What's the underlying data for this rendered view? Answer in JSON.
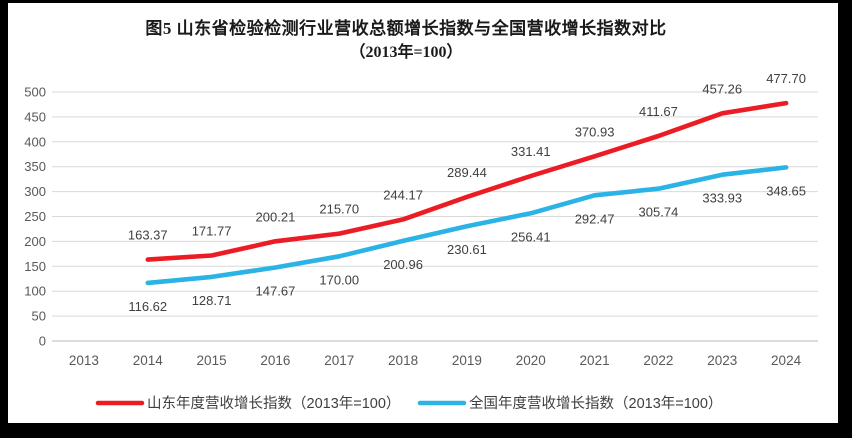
{
  "title": {
    "line1": "图5  山东省检验检测行业营收总额增长指数与全国营收增长指数对比",
    "line2": "（2013年=100）"
  },
  "chart_data": {
    "type": "line",
    "title": "图5  山东省检验检测行业营收总额增长指数与全国营收增长指数对比",
    "subtitle": "（2013年=100）",
    "categories": [
      "2013",
      "2014",
      "2015",
      "2016",
      "2017",
      "2018",
      "2019",
      "2020",
      "2021",
      "2022",
      "2023",
      "2024"
    ],
    "series": [
      {
        "name": "山东年度营收增长指数（2013年=100）",
        "color": "#ec1c24",
        "start_category": "2014",
        "values": [
          163.37,
          171.77,
          200.21,
          215.7,
          244.17,
          289.44,
          331.41,
          370.93,
          411.67,
          457.26,
          477.7
        ],
        "labels": [
          "163.37",
          "171.77",
          "200.21",
          "215.70",
          "244.17",
          "289.44",
          "331.41",
          "370.93",
          "411.67",
          "457.26",
          "477.70"
        ],
        "label_position": "above"
      },
      {
        "name": "全国年度营收增长指数（2013年=100）",
        "color": "#2bb3e6",
        "start_category": "2014",
        "values": [
          116.62,
          128.71,
          147.67,
          170.0,
          200.96,
          230.61,
          256.41,
          292.47,
          305.74,
          333.93,
          348.65
        ],
        "labels": [
          "116.62",
          "128.71",
          "147.67",
          "170.00",
          "200.96",
          "230.61",
          "256.41",
          "292.47",
          "305.74",
          "333.93",
          "348.65"
        ],
        "label_position": "below"
      }
    ],
    "ylim": [
      0,
      500
    ],
    "ytick_step": 50,
    "grid": true,
    "legend_position": "bottom",
    "xlabel": "",
    "ylabel": ""
  },
  "colors": {
    "background": "#ffffff",
    "frame": "#000000",
    "gridline": "#d9d9d9",
    "axis_line": "#c6c6c6",
    "tick_label": "#595959",
    "data_label": "#404040",
    "legend_text": "#3f3f3f",
    "series_shandong": "#ec1c24",
    "series_national": "#2bb3e6"
  }
}
